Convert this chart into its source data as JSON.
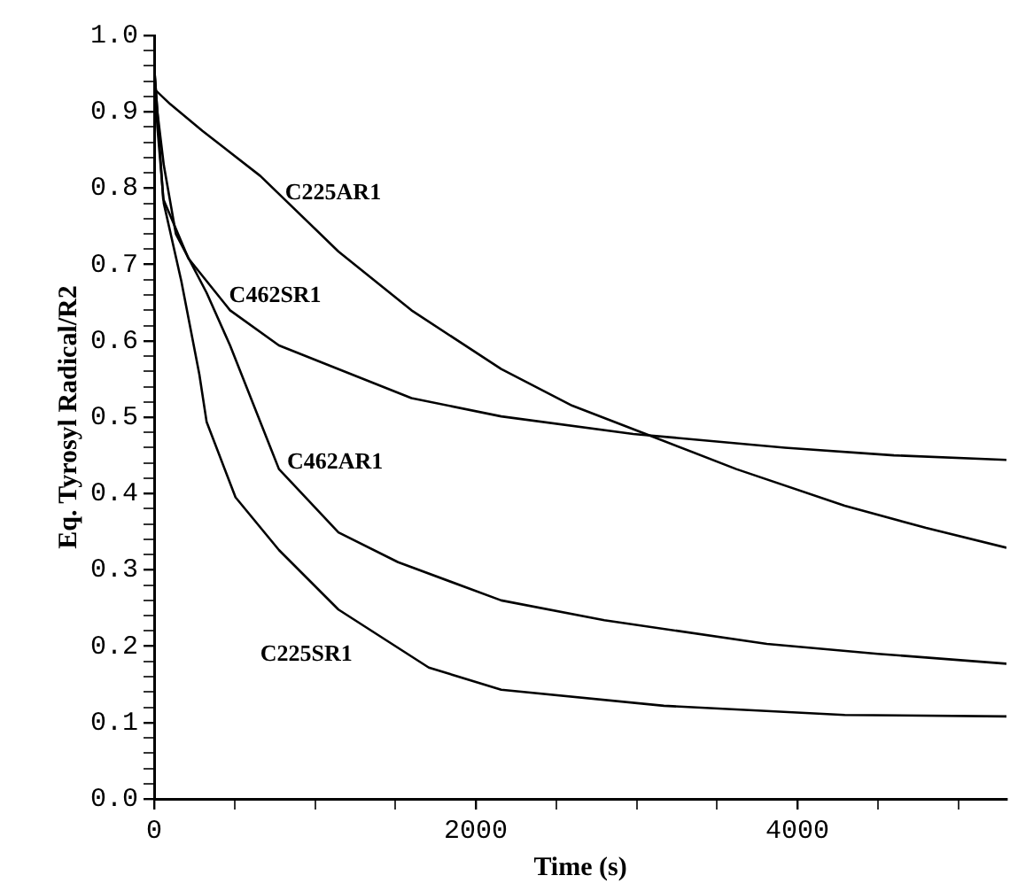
{
  "chart_data": {
    "type": "line",
    "xlabel": "Time (s)",
    "ylabel": "Eq. Tyrosyl Radical/R2",
    "xlim": [
      0,
      5300
    ],
    "ylim": [
      0,
      1
    ],
    "xticks": [
      0,
      {
        "value": 500,
        "label": null
      },
      {
        "value": 1000,
        "label": null
      },
      {
        "value": 1500,
        "label": null
      },
      2000,
      {
        "value": 2500,
        "label": null
      },
      {
        "value": 3000,
        "label": null
      },
      {
        "value": 3500,
        "label": null
      },
      4000,
      {
        "value": 4500,
        "label": null
      },
      {
        "value": 5000,
        "label": null
      }
    ],
    "yticks": [
      {
        "value": 0,
        "label": "0.0"
      },
      {
        "value": 0.02,
        "label": null
      },
      {
        "value": 0.04,
        "label": null
      },
      {
        "value": 0.06,
        "label": null
      },
      {
        "value": 0.08,
        "label": null
      },
      0.1,
      {
        "value": 0.12,
        "label": null
      },
      {
        "value": 0.14,
        "label": null
      },
      {
        "value": 0.16,
        "label": null
      },
      {
        "value": 0.18,
        "label": null
      },
      0.2,
      {
        "value": 0.22,
        "label": null
      },
      {
        "value": 0.24,
        "label": null
      },
      {
        "value": 0.26,
        "label": null
      },
      {
        "value": 0.28,
        "label": null
      },
      0.3,
      {
        "value": 0.32,
        "label": null
      },
      {
        "value": 0.34,
        "label": null
      },
      {
        "value": 0.36,
        "label": null
      },
      {
        "value": 0.38,
        "label": null
      },
      0.4,
      {
        "value": 0.42,
        "label": null
      },
      {
        "value": 0.44,
        "label": null
      },
      {
        "value": 0.46,
        "label": null
      },
      {
        "value": 0.48,
        "label": null
      },
      0.5,
      {
        "value": 0.52,
        "label": null
      },
      {
        "value": 0.54,
        "label": null
      },
      {
        "value": 0.56,
        "label": null
      },
      {
        "value": 0.58,
        "label": null
      },
      0.6,
      {
        "value": 0.62,
        "label": null
      },
      {
        "value": 0.64,
        "label": null
      },
      {
        "value": 0.66,
        "label": null
      },
      {
        "value": 0.68,
        "label": null
      },
      0.7,
      {
        "value": 0.72,
        "label": null
      },
      {
        "value": 0.74,
        "label": null
      },
      {
        "value": 0.76,
        "label": null
      },
      {
        "value": 0.78,
        "label": null
      },
      0.8,
      {
        "value": 0.82,
        "label": null
      },
      {
        "value": 0.84,
        "label": null
      },
      {
        "value": 0.86,
        "label": null
      },
      {
        "value": 0.88,
        "label": null
      },
      0.9,
      {
        "value": 0.92,
        "label": null
      },
      {
        "value": 0.94,
        "label": null
      },
      {
        "value": 0.96,
        "label": null
      },
      {
        "value": 0.98,
        "label": null
      },
      {
        "value": 1,
        "label": "1.0"
      }
    ],
    "grid": false,
    "legend": false,
    "marker": "none",
    "line_style": "solid",
    "series": [
      {
        "name": "C225AR1",
        "color": "#000000",
        "x": [
          0,
          100,
          300,
          660,
          1146,
          1600,
          2158,
          2600,
          3057,
          3620,
          4294,
          4800,
          5300
        ],
        "values": [
          0.93,
          0.91,
          0.875,
          0.816,
          0.717,
          0.64,
          0.563,
          0.515,
          0.478,
          0.432,
          0.384,
          0.355,
          0.329
        ]
      },
      {
        "name": "C462SR1",
        "color": "#000000",
        "x": [
          0,
          20,
          56,
          213,
          472,
          776,
          1146,
          1600,
          2158,
          2979,
          3923,
          4600,
          5300
        ],
        "values": [
          0.96,
          0.9,
          0.786,
          0.708,
          0.64,
          0.594,
          0.563,
          0.525,
          0.501,
          0.478,
          0.46,
          0.45,
          0.444
        ]
      },
      {
        "name": "C462AR1",
        "color": "#000000",
        "x": [
          0,
          20,
          60,
          135,
          326,
          472,
          776,
          1146,
          1517,
          2158,
          2799,
          3810,
          4500,
          5300
        ],
        "values": [
          0.96,
          0.9,
          0.83,
          0.74,
          0.663,
          0.594,
          0.432,
          0.349,
          0.31,
          0.26,
          0.234,
          0.203,
          0.19,
          0.177
        ]
      },
      {
        "name": "C225SR1",
        "color": "#000000",
        "x": [
          0,
          20,
          60,
          169,
          281,
          326,
          506,
          776,
          1146,
          1708,
          2158,
          3170,
          4294,
          5300
        ],
        "values": [
          0.96,
          0.88,
          0.78,
          0.678,
          0.556,
          0.494,
          0.395,
          0.326,
          0.248,
          0.172,
          0.143,
          0.122,
          0.11,
          0.108
        ]
      }
    ]
  }
}
